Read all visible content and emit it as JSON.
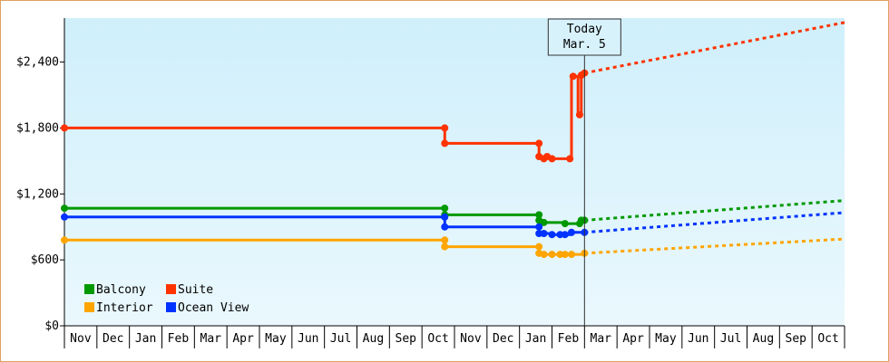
{
  "chart_data": {
    "type": "line",
    "title": "",
    "xlabel": "",
    "ylabel": "",
    "x_categories": [
      "Nov",
      "Dec",
      "Jan",
      "Feb",
      "Mar",
      "Apr",
      "May",
      "Jun",
      "Jul",
      "Aug",
      "Sep",
      "Oct",
      "Nov",
      "Dec",
      "Jan",
      "Feb",
      "Mar",
      "Apr",
      "May",
      "Jun",
      "Jul",
      "Aug",
      "Sep",
      "Oct"
    ],
    "y_ticks": [
      {
        "value": 0,
        "label": "$0"
      },
      {
        "value": 600,
        "label": "$600"
      },
      {
        "value": 1200,
        "label": "$1,200"
      },
      {
        "value": 1800,
        "label": "$1,800"
      },
      {
        "value": 2400,
        "label": "$2,400"
      }
    ],
    "ylim": [
      0,
      2800
    ],
    "grid": false,
    "today_marker": {
      "line1": "Today",
      "line2": "Mar. 5",
      "x": 16.0
    },
    "legend": {
      "placement": "bottom-left",
      "entries": [
        "Balcony",
        "Suite",
        "Interior",
        "Ocean View"
      ]
    },
    "series": [
      {
        "name": "Suite",
        "color": "#ff3300",
        "points": [
          [
            0,
            1800
          ],
          [
            11.7,
            1800
          ],
          [
            11.7,
            1660
          ],
          [
            14.6,
            1660
          ],
          [
            14.6,
            1540
          ],
          [
            14.7,
            1540
          ],
          [
            14.8,
            1520
          ],
          [
            14.9,
            1540
          ],
          [
            15.0,
            1520
          ],
          [
            15.3,
            1520
          ],
          [
            15.6,
            1520
          ],
          [
            15.6,
            2270
          ],
          [
            15.8,
            2270
          ],
          [
            15.8,
            1920
          ],
          [
            15.9,
            1920
          ],
          [
            15.9,
            2300
          ],
          [
            16.0,
            2300
          ]
        ],
        "markers": [
          [
            0,
            1800
          ],
          [
            11.7,
            1800
          ],
          [
            11.7,
            1660
          ],
          [
            14.6,
            1660
          ],
          [
            14.6,
            1540
          ],
          [
            14.75,
            1520
          ],
          [
            14.85,
            1540
          ],
          [
            15.0,
            1520
          ],
          [
            15.55,
            1520
          ],
          [
            15.65,
            2270
          ],
          [
            15.85,
            1920
          ],
          [
            15.9,
            2280
          ],
          [
            16.0,
            2300
          ]
        ],
        "forecast": [
          [
            16.0,
            2300
          ],
          [
            24.0,
            2760
          ]
        ]
      },
      {
        "name": "Balcony",
        "color": "#009900",
        "points": [
          [
            0,
            1070
          ],
          [
            11.7,
            1070
          ],
          [
            11.7,
            1010
          ],
          [
            14.6,
            1010
          ],
          [
            14.6,
            950
          ],
          [
            14.75,
            950
          ],
          [
            14.75,
            940
          ],
          [
            15.4,
            940
          ],
          [
            15.4,
            930
          ],
          [
            15.85,
            930
          ],
          [
            15.85,
            960
          ],
          [
            16.0,
            960
          ]
        ],
        "markers": [
          [
            0,
            1070
          ],
          [
            11.7,
            1070
          ],
          [
            11.7,
            1010
          ],
          [
            14.6,
            1010
          ],
          [
            14.6,
            960
          ],
          [
            14.75,
            940
          ],
          [
            15.4,
            930
          ],
          [
            15.85,
            930
          ],
          [
            15.9,
            960
          ],
          [
            16.0,
            960
          ]
        ],
        "forecast": [
          [
            16.0,
            960
          ],
          [
            24.0,
            1140
          ]
        ]
      },
      {
        "name": "Ocean View",
        "color": "#0033ff",
        "points": [
          [
            0,
            990
          ],
          [
            11.7,
            990
          ],
          [
            11.7,
            900
          ],
          [
            14.6,
            900
          ],
          [
            14.6,
            840
          ],
          [
            15.0,
            840
          ],
          [
            15.0,
            830
          ],
          [
            15.6,
            830
          ],
          [
            15.6,
            850
          ],
          [
            16.0,
            850
          ]
        ],
        "markers": [
          [
            0,
            990
          ],
          [
            11.7,
            990
          ],
          [
            11.7,
            900
          ],
          [
            14.6,
            900
          ],
          [
            14.6,
            840
          ],
          [
            14.75,
            840
          ],
          [
            15.0,
            830
          ],
          [
            15.25,
            830
          ],
          [
            15.4,
            830
          ],
          [
            15.6,
            850
          ],
          [
            16.0,
            850
          ]
        ],
        "forecast": [
          [
            16.0,
            850
          ],
          [
            24.0,
            1030
          ]
        ]
      },
      {
        "name": "Interior",
        "color": "#ffa500",
        "points": [
          [
            0,
            780
          ],
          [
            11.7,
            780
          ],
          [
            11.7,
            720
          ],
          [
            14.6,
            720
          ],
          [
            14.6,
            650
          ],
          [
            16.0,
            650
          ],
          [
            16.0,
            660
          ]
        ],
        "markers": [
          [
            0,
            780
          ],
          [
            11.7,
            780
          ],
          [
            11.7,
            720
          ],
          [
            14.6,
            720
          ],
          [
            14.6,
            660
          ],
          [
            14.75,
            650
          ],
          [
            15.0,
            650
          ],
          [
            15.25,
            650
          ],
          [
            15.4,
            650
          ],
          [
            15.6,
            650
          ],
          [
            16.0,
            660
          ]
        ],
        "forecast": [
          [
            16.0,
            660
          ],
          [
            24.0,
            790
          ]
        ]
      }
    ]
  }
}
